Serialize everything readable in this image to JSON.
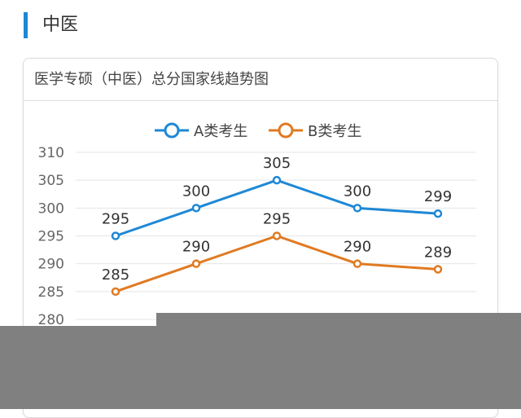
{
  "section": {
    "title": "中医",
    "accent_color": "#1e88d6"
  },
  "card": {
    "title": "医学专硕（中医）总分国家线趋势图"
  },
  "chart_data": {
    "type": "line",
    "title": "医学专硕（中医）总分国家线趋势图",
    "xlabel": "",
    "ylabel": "",
    "ylim": [
      280,
      310
    ],
    "yticks": [
      310,
      305,
      300,
      295,
      290,
      285,
      280
    ],
    "grid": true,
    "legend": "top-center",
    "series": [
      {
        "name": "A类考生",
        "color": "#1e88d6",
        "values": [
          295,
          300,
          305,
          300,
          299
        ]
      },
      {
        "name": "B类考生",
        "color": "#e07a22",
        "values": [
          285,
          290,
          295,
          290,
          289
        ]
      }
    ]
  }
}
